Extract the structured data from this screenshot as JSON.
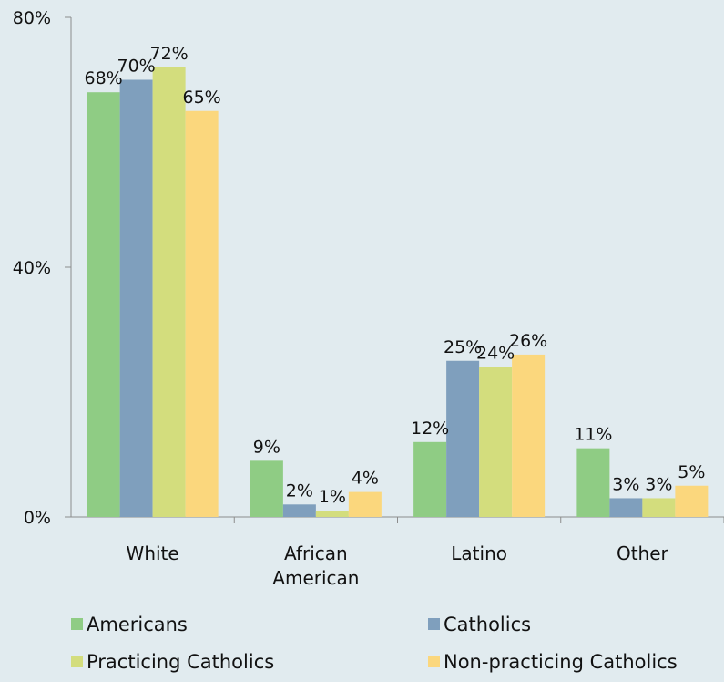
{
  "chart_data": {
    "type": "bar",
    "categories": [
      [
        "White"
      ],
      [
        "African",
        "American"
      ],
      [
        "Latino"
      ],
      [
        "Other"
      ]
    ],
    "series": [
      {
        "name": "Americans",
        "values": [
          68,
          9,
          12,
          11
        ],
        "labels": [
          "68%",
          "9%",
          "12%",
          "11%"
        ],
        "color": "#8fcc84"
      },
      {
        "name": "Catholics",
        "values": [
          70,
          2,
          25,
          3
        ],
        "labels": [
          "70%",
          "2%",
          "25%",
          "3%"
        ],
        "color": "#7f9fbd"
      },
      {
        "name": "Practicing Catholics",
        "values": [
          72,
          1,
          24,
          3
        ],
        "labels": [
          "72%",
          "1%",
          "24%",
          "3%"
        ],
        "color": "#d3dd7d"
      },
      {
        "name": "Non-practicing Catholics",
        "values": [
          65,
          4,
          26,
          5
        ],
        "labels": [
          "65%",
          "4%",
          "26%",
          "5%"
        ],
        "color": "#fbd77d"
      }
    ],
    "y_ticks": [
      {
        "value": 0,
        "label": "0%"
      },
      {
        "value": 40,
        "label": "40%"
      },
      {
        "value": 80,
        "label": "80%"
      }
    ],
    "ylim": [
      0,
      80
    ],
    "grid": false,
    "legend_position": "bottom"
  }
}
